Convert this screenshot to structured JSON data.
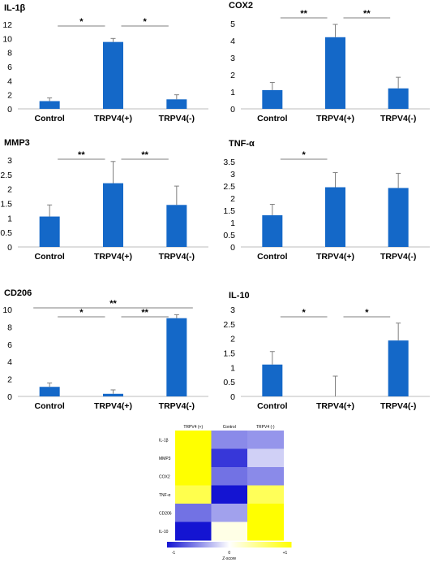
{
  "chart_data": [
    {
      "type": "bar",
      "title": "IL-1β",
      "categories": [
        "Control",
        "TRPV4(+)",
        "TRPV4(-)"
      ],
      "values": [
        1.1,
        9.5,
        1.35
      ],
      "errors": [
        0.45,
        0.5,
        0.65
      ],
      "ylim": [
        0,
        12
      ],
      "yticks": [
        0,
        2,
        4,
        6,
        8,
        10,
        12
      ],
      "significance": [
        {
          "from": 0,
          "to": 1,
          "label": "*"
        },
        {
          "from": 1,
          "to": 2,
          "label": "*"
        }
      ]
    },
    {
      "type": "bar",
      "title": "COX2",
      "categories": [
        "Control",
        "TRPV4(+)",
        "TRPV4(-)"
      ],
      "values": [
        1.1,
        4.2,
        1.2
      ],
      "errors": [
        0.45,
        0.75,
        0.65
      ],
      "ylim": [
        0,
        5
      ],
      "yticks": [
        0,
        1,
        2,
        3,
        4,
        5
      ],
      "significance": [
        {
          "from": 0,
          "to": 1,
          "label": "**"
        },
        {
          "from": 1,
          "to": 2,
          "label": "**"
        }
      ]
    },
    {
      "type": "bar",
      "title": "MMP3",
      "categories": [
        "Control",
        "TRPV4(+)",
        "TRPV4(-)"
      ],
      "values": [
        1.05,
        2.2,
        1.45
      ],
      "errors": [
        0.4,
        0.75,
        0.65
      ],
      "ylim": [
        0,
        3
      ],
      "yticks": [
        0,
        0.5,
        1,
        1.5,
        2,
        2.5,
        3
      ],
      "significance": [
        {
          "from": 0,
          "to": 1,
          "label": "**"
        },
        {
          "from": 1,
          "to": 2,
          "label": "**"
        }
      ]
    },
    {
      "type": "bar",
      "title": "TNF-α",
      "categories": [
        "Control",
        "TRPV4(+)",
        "TRPV4(-)"
      ],
      "values": [
        1.3,
        2.45,
        2.42
      ],
      "errors": [
        0.45,
        0.6,
        0.6
      ],
      "ylim": [
        0,
        3.5
      ],
      "yticks": [
        0,
        0.5,
        1,
        1.5,
        2,
        2.5,
        3,
        3.5
      ],
      "significance": [
        {
          "from": 0,
          "to": 1,
          "label": "*"
        }
      ]
    },
    {
      "type": "bar",
      "title": "CD206",
      "categories": [
        "Control",
        "TRPV4(+)",
        "TRPV4(-)"
      ],
      "values": [
        1.1,
        0.3,
        9.0
      ],
      "errors": [
        0.45,
        0.45,
        0.4
      ],
      "ylim": [
        0,
        10
      ],
      "yticks": [
        0,
        2,
        4,
        6,
        8,
        10
      ],
      "significance": [
        {
          "from": 0,
          "to": 1,
          "label": "*"
        },
        {
          "from": 1,
          "to": 2,
          "label": "**"
        },
        {
          "from": 0,
          "to": 2,
          "label": "**"
        }
      ]
    },
    {
      "type": "bar",
      "title": "IL-10",
      "categories": [
        "Control",
        "TRPV4(+)",
        "TRPV4(-)"
      ],
      "values": [
        1.1,
        0.0,
        1.93
      ],
      "errors": [
        0.45,
        0.7,
        0.6
      ],
      "ylim": [
        0,
        3
      ],
      "yticks": [
        0,
        0.5,
        1,
        1.5,
        2,
        2.5,
        3
      ],
      "significance": [
        {
          "from": 0,
          "to": 1,
          "label": "*"
        },
        {
          "from": 1,
          "to": 2,
          "label": "*"
        }
      ]
    },
    {
      "type": "heatmap",
      "columns": [
        "TRPV4 (+)",
        "Control",
        "TRPV4 (-)"
      ],
      "rows": [
        "IL-1β",
        "MMP3",
        "COX2",
        "TNF-α",
        "CD206",
        "IL-10"
      ],
      "values": [
        [
          1.0,
          -0.5,
          -0.45
        ],
        [
          1.0,
          -0.85,
          -0.2
        ],
        [
          1.0,
          -0.6,
          -0.5
        ],
        [
          0.7,
          -1.0,
          0.65
        ],
        [
          -0.6,
          -0.4,
          1.0
        ],
        [
          -1.0,
          0.1,
          1.0
        ]
      ],
      "scale": {
        "min": -1,
        "max": 1,
        "ticks": [
          "-1",
          "0",
          "+1"
        ],
        "label": "Z-score"
      }
    }
  ],
  "colors": {
    "bar": "#1468c8",
    "error": "#808080",
    "axis": "#bdbdbd",
    "heat_low": "#1414d2",
    "heat_mid": "#ffffff",
    "heat_high": "#ffff00"
  }
}
